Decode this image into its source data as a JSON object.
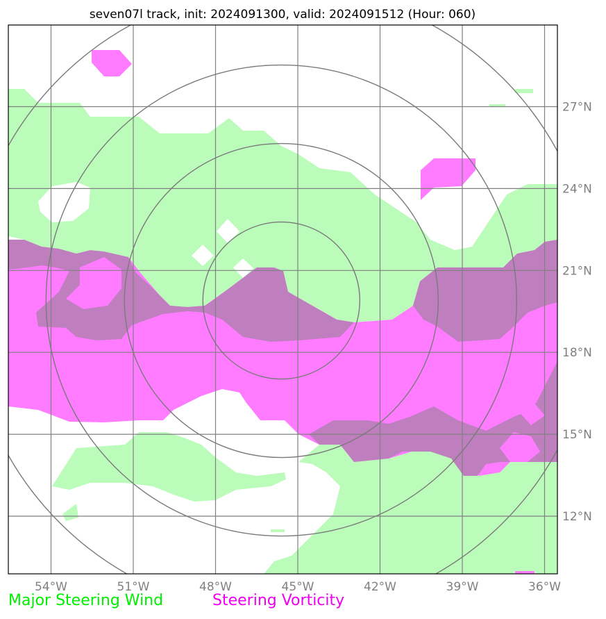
{
  "title": "seven07l track, init: 2024091300, valid: 2024091512 (Hour: 060)",
  "map": {
    "lon_range": [
      -56,
      -35.5
    ],
    "lat_range": [
      10,
      30
    ],
    "lon_ticks": [
      {
        "value": -54,
        "label": "54°W"
      },
      {
        "value": -51,
        "label": "51°W"
      },
      {
        "value": -48,
        "label": "48°W"
      },
      {
        "value": -45,
        "label": "45°W"
      },
      {
        "value": -42,
        "label": "42°W"
      },
      {
        "value": -39,
        "label": "39°W"
      },
      {
        "value": -36,
        "label": "36°W"
      }
    ],
    "lat_ticks": [
      {
        "value": 12,
        "label": "12°N"
      },
      {
        "value": 15,
        "label": "15°N"
      },
      {
        "value": 18,
        "label": "18°N"
      },
      {
        "value": 21,
        "label": "21°N"
      },
      {
        "value": 24,
        "label": "24°N"
      },
      {
        "value": 27,
        "label": "27°N"
      }
    ],
    "range_rings_center": {
      "lon": -45.6,
      "lat": 19.9
    },
    "range_ring_count": 4
  },
  "colors": {
    "steering_wind": "#bbfcbb",
    "steering_vorticity": "#ff7bff",
    "overlap": "#bf7fbf",
    "grid": "#808080",
    "legend_wind": "#00ee00",
    "legend_vorticity": "#ee00ee"
  },
  "legend": {
    "wind_label": "Major Steering Wind",
    "vorticity_label": "Steering Vorticity"
  }
}
